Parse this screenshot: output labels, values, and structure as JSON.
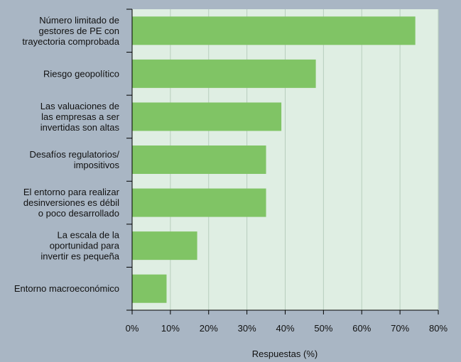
{
  "chart_data": {
    "type": "bar",
    "orientation": "horizontal",
    "categories": [
      "Número limitado de\ngestores de PE con\ntrayectoria comprobada",
      "Riesgo geopolítico",
      "Las valuaciones de\nlas empresas a ser\ninvertidas son altas",
      "Desafíos regulatorios/\nimpositivos",
      "El entorno para realizar\ndesinversiones es débil\no poco desarrollado",
      "La escala de la\noportunidad para\ninvertir es pequeña",
      "Entorno macroeconómico"
    ],
    "values": [
      74,
      48,
      39,
      35,
      35,
      17,
      9
    ],
    "color": "#80c465",
    "xlabel": "Respuestas (%)",
    "xlim": [
      0,
      80
    ],
    "xticks": [
      {
        "value": 0,
        "label": "0%"
      },
      {
        "value": 10,
        "label": "10%"
      },
      {
        "value": 20,
        "label": "20%"
      },
      {
        "value": 30,
        "label": "30%"
      },
      {
        "value": 40,
        "label": "40%"
      },
      {
        "value": 50,
        "label": "50%"
      },
      {
        "value": 60,
        "label": "60%"
      },
      {
        "value": 70,
        "label": "70%"
      },
      {
        "value": 80,
        "label": "80%"
      }
    ],
    "grid": true
  }
}
